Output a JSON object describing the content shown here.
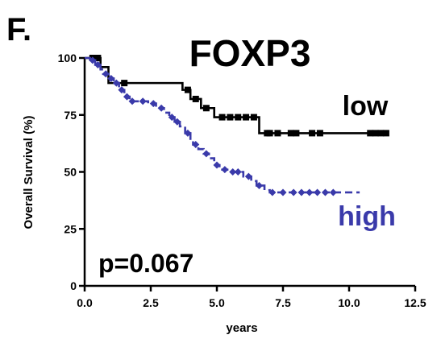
{
  "panel_label": "F.",
  "chart_data": {
    "type": "line",
    "subtype": "kaplan-meier",
    "title": "FOXP3",
    "xlabel": "years",
    "ylabel": "Overall Survival (%)",
    "xlim": [
      0,
      12.5
    ],
    "ylim": [
      0,
      100
    ],
    "x_ticks": [
      "0.0",
      "2.5",
      "5.0",
      "7.5",
      "10.0",
      "12.5"
    ],
    "y_ticks": [
      "0",
      "25",
      "50",
      "75",
      "100"
    ],
    "grid": false,
    "annotations": [
      "p=0.067"
    ],
    "series": [
      {
        "name": "low",
        "color": "#000000",
        "line_style": "solid",
        "steps": [
          [
            0,
            100
          ],
          [
            0.6,
            96
          ],
          [
            0.9,
            89
          ],
          [
            3.3,
            89
          ],
          [
            3.7,
            86
          ],
          [
            4.0,
            82
          ],
          [
            4.4,
            78
          ],
          [
            4.9,
            74
          ],
          [
            6.6,
            67
          ],
          [
            11.4,
            67
          ]
        ],
        "censor_x": [
          0.3,
          0.5,
          1.5,
          3.9,
          4.2,
          4.6,
          5.2,
          5.5,
          5.8,
          6.1,
          6.4,
          6.9,
          7.0,
          7.3,
          7.8,
          8.0,
          8.6,
          8.9,
          10.8,
          11.0,
          11.2,
          11.4
        ]
      },
      {
        "name": "high",
        "color": "#3a3aaa",
        "line_style": "dashed",
        "steps": [
          [
            0,
            100
          ],
          [
            0.2,
            99
          ],
          [
            0.4,
            97
          ],
          [
            0.6,
            95
          ],
          [
            0.7,
            93
          ],
          [
            0.9,
            91
          ],
          [
            1.1,
            89
          ],
          [
            1.3,
            86
          ],
          [
            1.5,
            83
          ],
          [
            1.7,
            81
          ],
          [
            2.4,
            80
          ],
          [
            2.7,
            78
          ],
          [
            3.0,
            76
          ],
          [
            3.2,
            74
          ],
          [
            3.4,
            72
          ],
          [
            3.6,
            70
          ],
          [
            3.8,
            67
          ],
          [
            4.0,
            64
          ],
          [
            4.1,
            62
          ],
          [
            4.3,
            60
          ],
          [
            4.5,
            58
          ],
          [
            4.7,
            56
          ],
          [
            4.9,
            53
          ],
          [
            5.1,
            51
          ],
          [
            5.5,
            50
          ],
          [
            6.0,
            48
          ],
          [
            6.3,
            46
          ],
          [
            6.5,
            44
          ],
          [
            6.8,
            42
          ],
          [
            7.0,
            41
          ],
          [
            10.4,
            41
          ]
        ],
        "censor_x": [
          0.3,
          0.5,
          0.8,
          1.0,
          1.2,
          1.4,
          1.6,
          1.8,
          2.2,
          2.6,
          2.9,
          3.3,
          3.5,
          3.9,
          4.2,
          4.6,
          5.0,
          5.3,
          5.6,
          5.8,
          6.2,
          6.6,
          7.1,
          7.5,
          7.9,
          8.2,
          8.5,
          8.8,
          9.1,
          9.4
        ]
      }
    ]
  }
}
